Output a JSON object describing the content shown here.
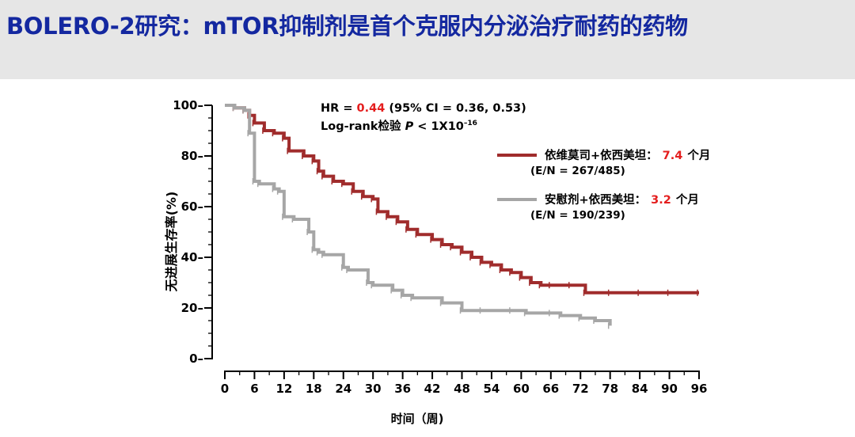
{
  "slide": {
    "title": "BOLERO-2研究：mTOR抑制剂是首个克服内分泌治疗耐药的药物"
  },
  "colors": {
    "title": "#1428a0",
    "header_bg": "#e6e6e6",
    "everolimus": "#a02c2c",
    "placebo": "#a6a6a6",
    "highlight": "#e41e1e",
    "axis": "#000000"
  },
  "annotation": {
    "hr_prefix": "HR = ",
    "hr_value": "0.44",
    "hr_suffix": " (95% CI = 0.36, 0.53)",
    "logrank_prefix": "Log-rank检验 ",
    "logrank_p": "P",
    "logrank_mid": " < 1X10",
    "logrank_exp": "–16"
  },
  "chart_data": {
    "type": "line",
    "subtype": "kaplan-meier step",
    "xlabel": "时间（周)",
    "ylabel": "无进展生存率(%)",
    "xlim": [
      0,
      96
    ],
    "ylim": [
      0,
      100
    ],
    "xticks": [
      0,
      6,
      12,
      18,
      24,
      30,
      36,
      42,
      48,
      54,
      60,
      66,
      72,
      78,
      84,
      90,
      96
    ],
    "xtick_labels": [
      "0",
      "6",
      "12",
      "18",
      "24",
      "30",
      "36",
      "42",
      "48",
      "54",
      "60",
      "66",
      "72",
      "78",
      "84",
      "90",
      "96"
    ],
    "yticks": [
      0,
      20,
      40,
      60,
      80,
      100
    ],
    "ytick_labels": [
      "0–",
      "20–",
      "40–",
      "60–",
      "80–",
      "100–"
    ],
    "series": [
      {
        "name": "依维莫司+依西美坦",
        "median_label": "7.4",
        "unit": "个月",
        "en_label": "(E/N = 267/485)",
        "color": "#a02c2c",
        "x": [
          0,
          2,
          4,
          5,
          6,
          8,
          10,
          12,
          13,
          16,
          18,
          19,
          20,
          22,
          24,
          26,
          28,
          30,
          31,
          33,
          35,
          37,
          39,
          42,
          44,
          46,
          48,
          50,
          52,
          54,
          56,
          58,
          60,
          62,
          64,
          66,
          70,
          73,
          78,
          84,
          90,
          96
        ],
        "y": [
          100,
          99,
          98,
          96,
          93,
          90,
          89,
          87,
          82,
          80,
          78,
          74,
          72,
          70,
          69,
          66,
          64,
          63,
          58,
          56,
          54,
          51,
          49,
          47,
          45,
          44,
          42,
          40,
          38,
          37,
          35,
          34,
          32,
          30,
          29,
          29,
          29,
          26,
          26,
          26,
          26,
          26
        ]
      },
      {
        "name": "安慰剂+依西美坦",
        "median_label": "3.2",
        "unit": "个月",
        "en_label": "(E/N = 190/239)",
        "color": "#a6a6a6",
        "x": [
          0,
          2,
          4,
          5,
          6,
          7,
          10,
          11,
          12,
          14,
          17,
          18,
          19,
          20,
          24,
          25,
          29,
          30,
          34,
          36,
          38,
          44,
          48,
          52,
          58,
          61,
          66,
          68,
          72,
          75,
          78
        ],
        "y": [
          100,
          99,
          98,
          89,
          70,
          69,
          67,
          66,
          56,
          55,
          50,
          43,
          42,
          41,
          36,
          35,
          30,
          29,
          27,
          25,
          24,
          22,
          19,
          19,
          19,
          18,
          18,
          17,
          16,
          15,
          13
        ]
      }
    ]
  }
}
